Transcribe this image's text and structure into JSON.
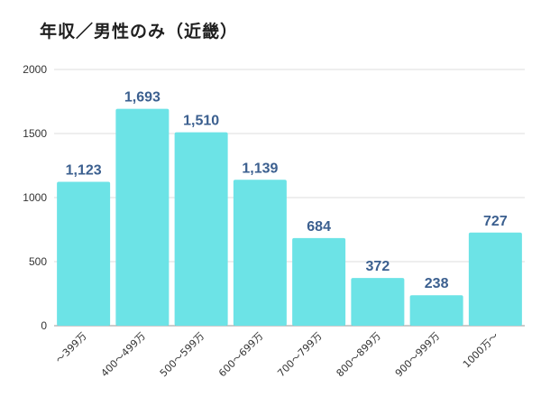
{
  "chart_data": {
    "type": "bar",
    "title": "年収／男性のみ（近畿）",
    "categories": [
      "～399万",
      "400～499万",
      "500～599万",
      "600～699万",
      "700～799万",
      "800～899万",
      "900～999万",
      "1000万～"
    ],
    "values": [
      1123,
      1693,
      1510,
      1139,
      684,
      372,
      238,
      727
    ],
    "value_labels": [
      "1,123",
      "1,693",
      "1,510",
      "1,139",
      "684",
      "372",
      "238",
      "727"
    ],
    "yticks": [
      "0",
      "500",
      "1000",
      "1500",
      "2000"
    ],
    "ylim": [
      0,
      2000
    ],
    "xlabel": "",
    "ylabel": "",
    "grid": true,
    "bar_color": "#6ce3e6",
    "label_color": "#3b5f8f"
  }
}
